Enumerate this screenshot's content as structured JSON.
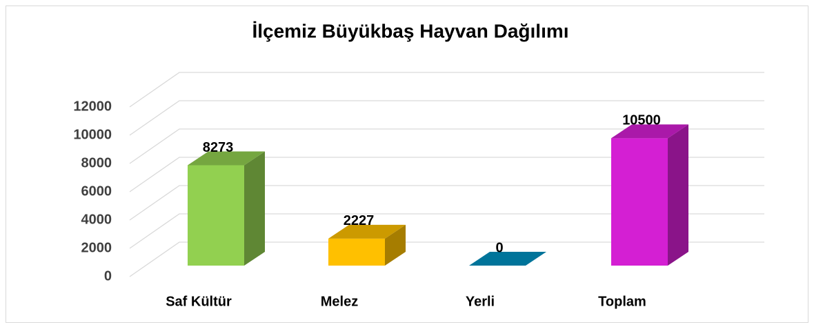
{
  "chart_data": {
    "type": "bar3d",
    "title": "İlçemiz Büyükbaş Hayvan Dağılımı",
    "categories": [
      "Saf Kültür",
      "Melez",
      "Yerli",
      "Toplam"
    ],
    "values": [
      8273,
      2227,
      0,
      10500
    ],
    "colors": [
      "#92d050",
      "#ffc000",
      "#0091c0",
      "#d41fd3"
    ],
    "ylim": [
      0,
      12000
    ],
    "yticks": [
      0,
      2000,
      4000,
      6000,
      8000,
      10000,
      12000
    ],
    "grid": true
  }
}
